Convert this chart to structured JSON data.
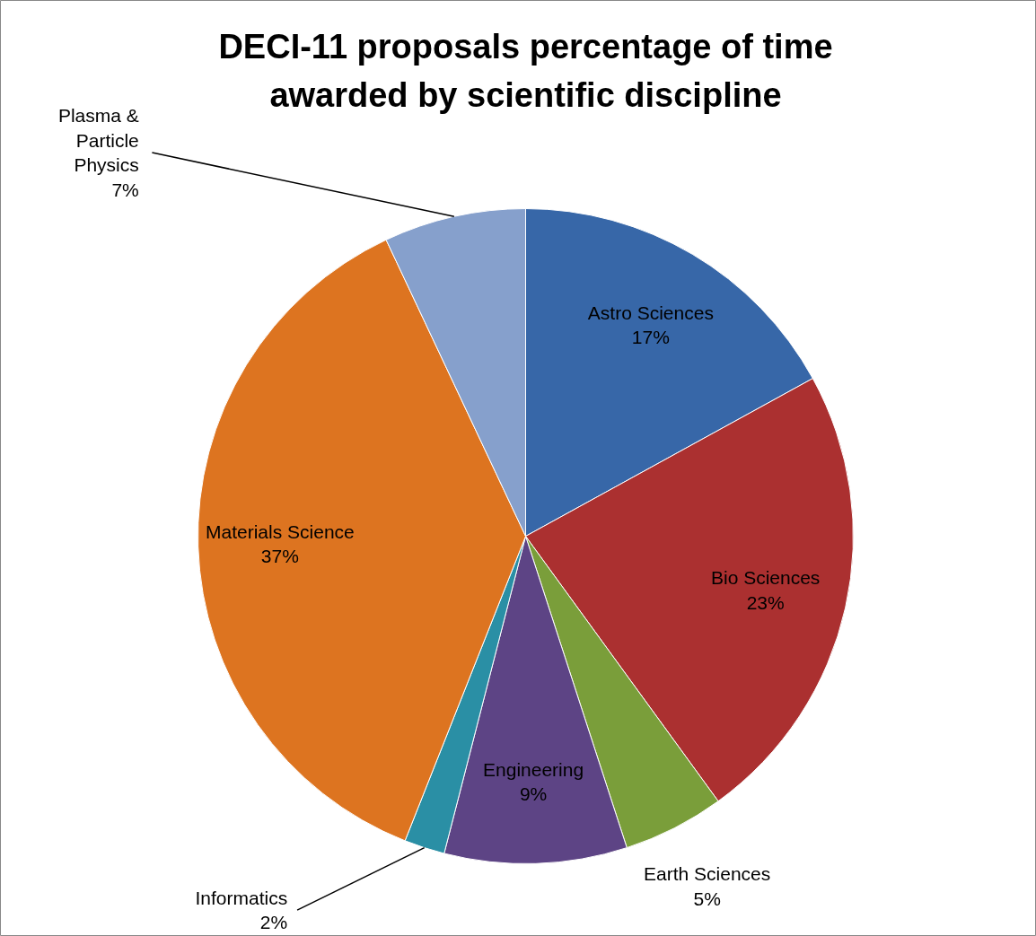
{
  "chart_data": {
    "type": "pie",
    "title": "DECI-11 proposals percentage of time awarded by scientific discipline",
    "categories": [
      "Astro Sciences",
      "Bio Sciences",
      "Earth Sciences",
      "Engineering",
      "Informatics",
      "Materials Science",
      "Plasma & Particle Physics"
    ],
    "values": [
      17,
      23,
      5,
      9,
      2,
      37,
      7
    ],
    "value_labels": [
      "17%",
      "23%",
      "5%",
      "9%",
      "2%",
      "37%",
      "7%"
    ],
    "colors": [
      "#3767a8",
      "#ab3030",
      "#7a9e3a",
      "#5d4485",
      "#2a8fa5",
      "#dd7420",
      "#86a0cc"
    ]
  }
}
